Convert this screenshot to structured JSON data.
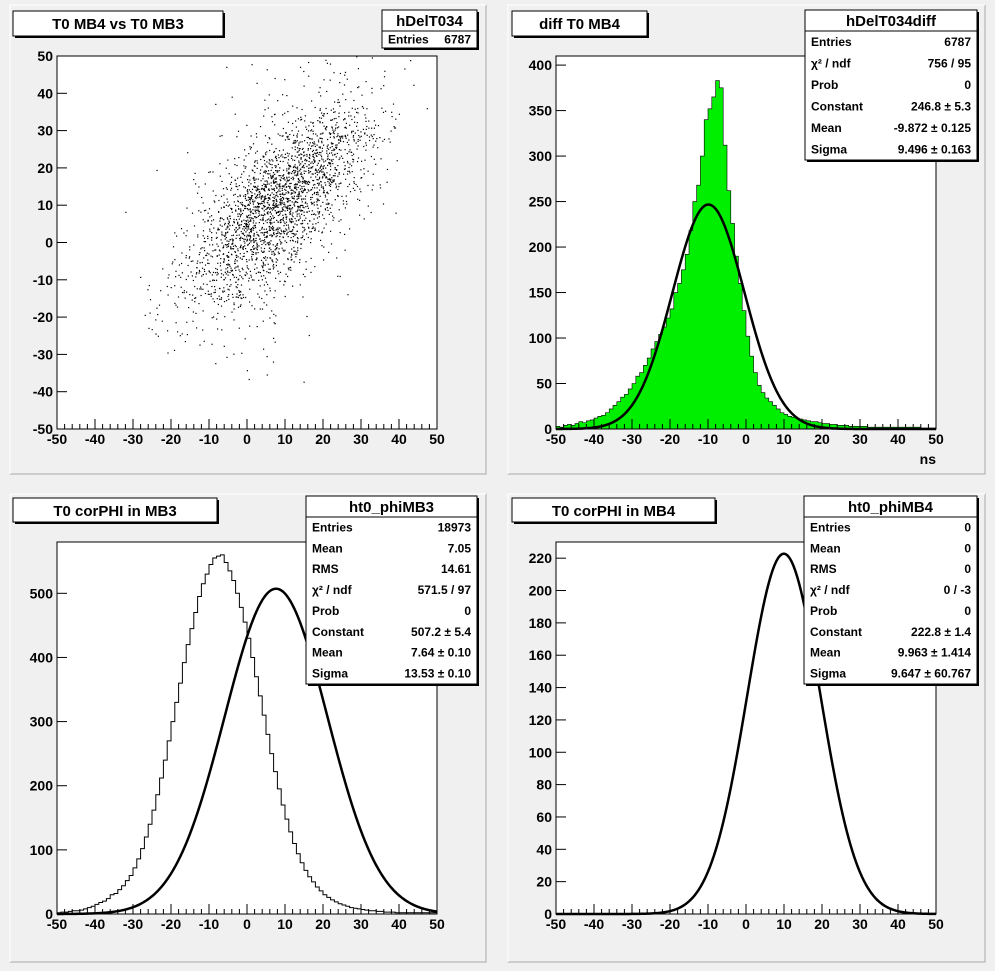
{
  "colors": {
    "background": "#f0f0f0",
    "frame": "#ffffff",
    "fill": "#00ee00",
    "line": "#000000"
  },
  "chart_data": [
    {
      "type": "scatter",
      "title": "T0 MB4 vs T0 MB3",
      "xlabel": "",
      "ylabel": "",
      "xlim": [
        -50,
        50
      ],
      "ylim": [
        -50,
        50
      ],
      "xticks": [
        "-50",
        "-40",
        "-30",
        "-20",
        "-10",
        "0",
        "10",
        "20",
        "30",
        "40",
        "50"
      ],
      "yticks": [
        "50",
        "40",
        "30",
        "20",
        "10",
        "0",
        "-10",
        "-20",
        "-30",
        "-40",
        "-50"
      ],
      "grid": false,
      "stats": {
        "name": "hDelT034",
        "rows": [
          {
            "label": "Entries",
            "value": "6787"
          }
        ]
      },
      "points_description": "2D scatter of 6787 entries, main cluster centered near x=5..10, y=10..20, correlated",
      "entries": 6787
    },
    {
      "type": "bar",
      "title": "diff T0 MB4",
      "xlabel": "ns",
      "ylabel": "",
      "xlim": [
        -50,
        50
      ],
      "ylim": [
        0,
        410
      ],
      "xticks": [
        "-50",
        "-40",
        "-30",
        "-20",
        "-10",
        "0",
        "10",
        "20",
        "30",
        "40",
        "50"
      ],
      "yticks": [
        "0",
        "50",
        "100",
        "150",
        "200",
        "250",
        "300",
        "350",
        "400"
      ],
      "fill": "#00ee00",
      "histogram": {
        "bin_width": 1,
        "x_start": -50,
        "values": [
          3,
          2,
          4,
          5,
          4,
          6,
          8,
          7,
          9,
          10,
          12,
          14,
          15,
          18,
          22,
          26,
          30,
          35,
          38,
          44,
          50,
          58,
          62,
          70,
          78,
          88,
          96,
          104,
          112,
          122,
          132,
          150,
          160,
          175,
          192,
          218,
          250,
          268,
          300,
          340,
          352,
          365,
          383,
          375,
          312,
          262,
          226,
          190,
          160,
          130,
          102,
          80,
          62,
          48,
          40,
          34,
          30,
          26,
          22,
          18,
          16,
          14,
          13,
          12,
          11,
          10,
          9,
          8,
          8,
          7,
          6,
          6,
          5,
          5,
          4,
          4,
          4,
          3,
          3,
          3,
          3,
          3,
          2,
          2,
          2,
          2,
          2,
          2,
          2,
          2,
          2,
          2,
          2,
          2,
          2,
          2,
          1,
          1,
          1,
          1
        ]
      },
      "fit": {
        "type": "gaus",
        "constant": 246.8,
        "mean": -9.872,
        "sigma": 9.496
      },
      "stats": {
        "name": "hDelT034diff",
        "rows": [
          {
            "label": "Entries",
            "value": "6787"
          },
          {
            "label": "χ² / ndf",
            "value": "756 / 95"
          },
          {
            "label": "Prob",
            "value": "0"
          },
          {
            "label": "Constant",
            "value": "246.8 ± 5.3"
          },
          {
            "label": "Mean",
            "value": "-9.872 ± 0.125"
          },
          {
            "label": "Sigma",
            "value": "9.496 ± 0.163"
          }
        ]
      }
    },
    {
      "type": "line",
      "title": "T0 corPHI in MB3",
      "xlabel": "",
      "ylabel": "",
      "xlim": [
        -50,
        50
      ],
      "ylim": [
        0,
        580
      ],
      "xticks": [
        "-50",
        "-40",
        "-30",
        "-20",
        "-10",
        "0",
        "10",
        "20",
        "30",
        "40",
        "50"
      ],
      "yticks": [
        "0",
        "100",
        "200",
        "300",
        "400",
        "500"
      ],
      "histogram": {
        "bin_width": 1,
        "x_start": -50,
        "values": [
          2,
          3,
          3,
          4,
          5,
          5,
          6,
          8,
          10,
          12,
          15,
          18,
          20,
          24,
          30,
          32,
          38,
          44,
          52,
          60,
          72,
          86,
          102,
          120,
          140,
          162,
          186,
          212,
          240,
          270,
          300,
          330,
          360,
          392,
          420,
          445,
          470,
          495,
          515,
          530,
          545,
          555,
          558,
          560,
          548,
          535,
          520,
          500,
          478,
          455,
          430,
          400,
          370,
          340,
          310,
          280,
          250,
          222,
          195,
          170,
          148,
          128,
          110,
          94,
          80,
          68,
          58,
          50,
          42,
          36,
          30,
          26,
          22,
          19,
          16,
          14,
          12,
          10,
          9,
          8,
          7,
          6,
          5,
          5,
          4,
          4,
          3,
          3,
          3,
          2,
          2,
          2,
          2,
          2,
          2,
          2,
          2,
          2,
          2,
          2
        ]
      },
      "fit": {
        "type": "gaus",
        "constant": 507.2,
        "mean": 7.64,
        "sigma": 13.53
      },
      "stats": {
        "name": "ht0_phiMB3",
        "rows": [
          {
            "label": "Entries",
            "value": "18973"
          },
          {
            "label": "Mean",
            "value": "7.05"
          },
          {
            "label": "RMS",
            "value": "14.61"
          },
          {
            "label": "χ² / ndf",
            "value": "571.5 / 97"
          },
          {
            "label": "Prob",
            "value": "0"
          },
          {
            "label": "Constant",
            "value": "507.2 ± 5.4"
          },
          {
            "label": "Mean",
            "value": "7.64 ± 0.10"
          },
          {
            "label": "Sigma",
            "value": "13.53 ± 0.10"
          }
        ]
      }
    },
    {
      "type": "line",
      "title": "T0 corPHI in MB4",
      "xlabel": "",
      "ylabel": "",
      "xlim": [
        -50,
        50
      ],
      "ylim": [
        0,
        230
      ],
      "xticks": [
        "-50",
        "-40",
        "-30",
        "-20",
        "-10",
        "0",
        "10",
        "20",
        "30",
        "40",
        "50"
      ],
      "yticks": [
        "0",
        "20",
        "40",
        "60",
        "80",
        "100",
        "120",
        "140",
        "160",
        "180",
        "200",
        "220"
      ],
      "fit": {
        "type": "gaus",
        "constant": 222.8,
        "mean": 9.963,
        "sigma": 9.647
      },
      "stats": {
        "name": "ht0_phiMB4",
        "rows": [
          {
            "label": "Entries",
            "value": "0"
          },
          {
            "label": "Mean",
            "value": "0"
          },
          {
            "label": "RMS",
            "value": "0"
          },
          {
            "label": "χ² / ndf",
            "value": "0 / -3"
          },
          {
            "label": "Prob",
            "value": "0"
          },
          {
            "label": "Constant",
            "value": "222.8 ± 1.4"
          },
          {
            "label": "Mean",
            "value": "9.963 ± 1.414"
          },
          {
            "label": "Sigma",
            "value": "9.647 ± 60.767"
          }
        ]
      }
    }
  ]
}
